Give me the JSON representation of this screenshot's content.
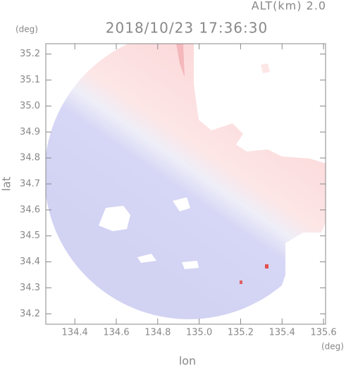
{
  "chart_data": {
    "type": "heatmap",
    "title": "2018/10/23 17:36:30",
    "annotation": "ALT(km) 2.0",
    "ylabel": "lat",
    "xlabel": "lon",
    "y_unit": "(deg)",
    "x_unit": "(deg)",
    "xlim": [
      134.26,
      135.61
    ],
    "ylim": [
      34.16,
      35.24
    ],
    "xticks": [
      134.4,
      134.6,
      134.8,
      {
        "value": 135.0,
        "label": "135.0"
      },
      135.2,
      135.4,
      135.6
    ],
    "yticks": [
      34.2,
      34.3,
      34.4,
      34.5,
      34.6,
      34.7,
      34.8,
      34.9,
      {
        "value": 35.0,
        "label": "35.0"
      },
      35.1,
      35.2
    ]
  }
}
